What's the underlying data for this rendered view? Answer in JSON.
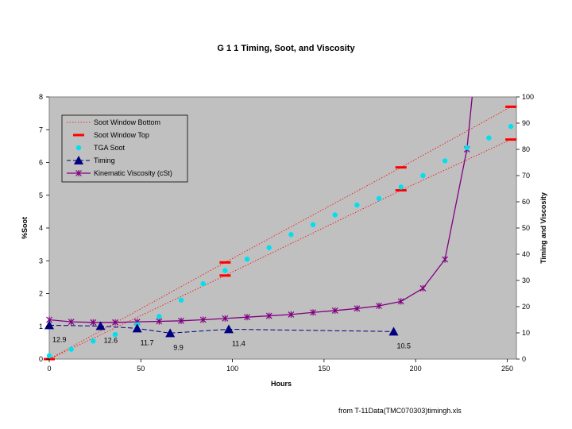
{
  "chart_data": {
    "type": "line",
    "title": "G 1 1 Timing, Soot, and Viscosity",
    "xlabel": "Hours",
    "ylabel_left": "%Soot",
    "ylabel_right": "Timing and Viscosity",
    "xlim": [
      0,
      255
    ],
    "ylim_left": [
      0,
      8
    ],
    "ylim_right": [
      0,
      100
    ],
    "x_ticks": [
      "0",
      "50",
      "100",
      "150",
      "200",
      "250"
    ],
    "y_ticks_left": [
      "0",
      "1",
      "2",
      "3",
      "4",
      "5",
      "6",
      "7",
      "8"
    ],
    "y_ticks_right": [
      "0",
      "10",
      "20",
      "30",
      "40",
      "50",
      "60",
      "70",
      "80",
      "90",
      "100"
    ],
    "grid": false,
    "legend_position": "top-left",
    "series": [
      {
        "name": "Soot Window Bottom",
        "axis": "left",
        "style": "dotted-red-line-with-red-dash-markers",
        "x": [
          0,
          96,
          192,
          252
        ],
        "y": [
          0,
          2.55,
          5.15,
          6.7
        ]
      },
      {
        "name": "Soot Window Top",
        "axis": "left",
        "style": "dotted-red-line-with-red-dash-markers",
        "x": [
          0,
          96,
          192,
          252
        ],
        "y": [
          0,
          2.95,
          5.85,
          7.7
        ]
      },
      {
        "name": "TGA Soot",
        "axis": "left",
        "style": "cyan-dots",
        "x": [
          0,
          12,
          24,
          36,
          48,
          60,
          72,
          84,
          96,
          108,
          120,
          132,
          144,
          156,
          168,
          180,
          192,
          204,
          216,
          228,
          240,
          252
        ],
        "y": [
          0.1,
          0.3,
          0.55,
          0.75,
          1.05,
          1.3,
          1.8,
          2.3,
          2.7,
          3.05,
          3.4,
          3.8,
          4.1,
          4.4,
          4.7,
          4.9,
          5.25,
          5.6,
          6.05,
          6.45,
          6.75,
          7.1
        ]
      },
      {
        "name": "Timing",
        "axis": "right",
        "style": "dashed-navy-with-triangles",
        "x": [
          0,
          28,
          48,
          66,
          98,
          188
        ],
        "y": [
          12.9,
          12.6,
          11.7,
          9.9,
          11.4,
          10.5
        ]
      },
      {
        "name": "Kinematic Viscosity (cSt)",
        "axis": "right",
        "style": "purple-line-with-star-markers",
        "x": [
          0,
          12,
          24,
          36,
          48,
          60,
          72,
          84,
          96,
          108,
          120,
          132,
          144,
          156,
          168,
          180,
          192,
          204,
          216,
          228,
          231
        ],
        "y": [
          15,
          14.2,
          14,
          14,
          14.2,
          14.4,
          14.6,
          15,
          15.5,
          16,
          16.5,
          17,
          17.8,
          18.5,
          19.3,
          20.3,
          22,
          27,
          38,
          80,
          101
        ]
      }
    ],
    "data_labels": [
      "12.9",
      "12.6",
      "11.7",
      "9.9",
      "11.4",
      "10.5"
    ],
    "colors": {
      "soot_window": "#ff0000",
      "tga_soot": "#00e0ee",
      "timing": "#000080",
      "viscosity": "#800080",
      "plot_bg": "#c0c0c0"
    }
  },
  "footer": "from T-11Data(TMC070303)timingh.xls"
}
